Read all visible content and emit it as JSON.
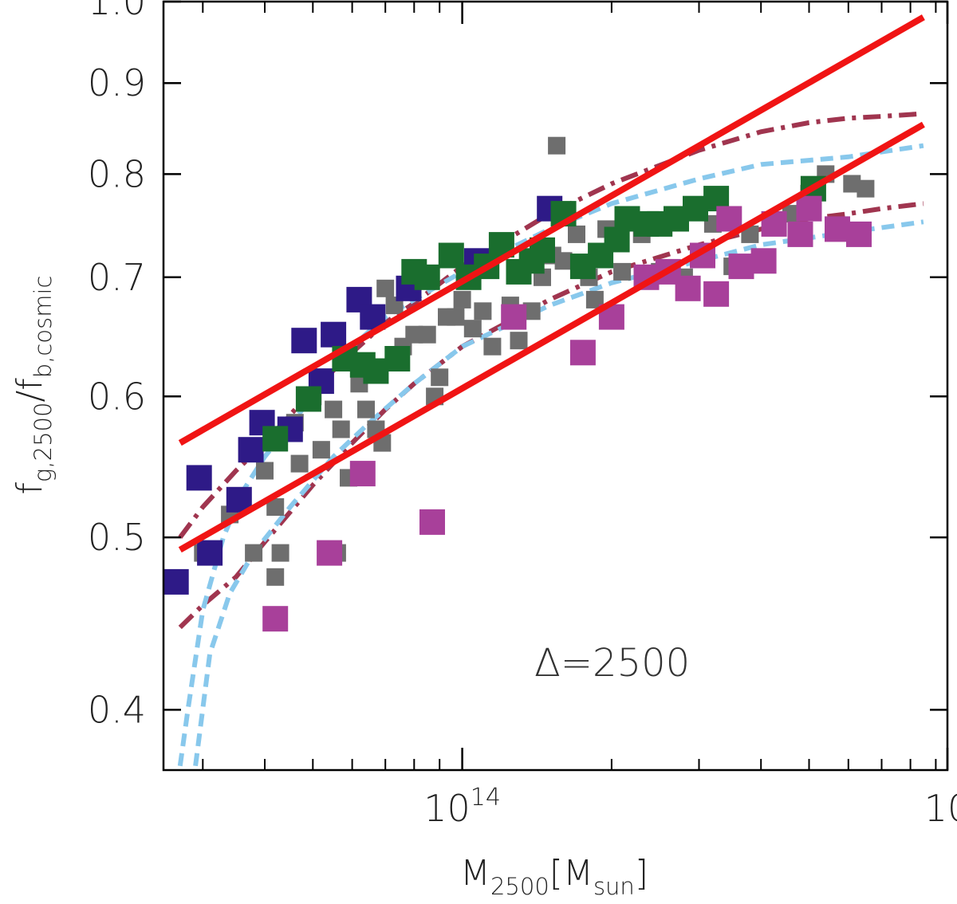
{
  "chart_data": {
    "type": "scatter",
    "xlabel": {
      "main": "M",
      "sub": "2500",
      "bracket_open": "[M",
      "bracket_sub": "sun",
      "bracket_close": "]"
    },
    "ylabel": {
      "main": "f",
      "sub1": "g,2500",
      "slash": "/f",
      "sub2": "b,cosmic"
    },
    "xscale": "log",
    "yscale": "log",
    "xlim": [
      25000000000000.0,
      950000000000000.0
    ],
    "ylim": [
      0.37,
      1.0
    ],
    "x_ticks": [
      {
        "value": 100000000000000.0,
        "base": "10",
        "exp": "14"
      },
      {
        "value": 950000000000000.0,
        "base": "10",
        "exp": ""
      }
    ],
    "x_minor_ticks": [
      30000000000000.0,
      40000000000000.0,
      50000000000000.0,
      60000000000000.0,
      70000000000000.0,
      80000000000000.0,
      90000000000000.0,
      200000000000000.0,
      300000000000000.0,
      400000000000000.0,
      500000000000000.0,
      600000000000000.0,
      700000000000000.0,
      800000000000000.0,
      900000000000000.0
    ],
    "y_ticks": [
      {
        "value": 0.4,
        "label": "0.4"
      },
      {
        "value": 0.5,
        "label": "0.5"
      },
      {
        "value": 0.6,
        "label": "0.6"
      },
      {
        "value": 0.7,
        "label": "0.7"
      },
      {
        "value": 0.8,
        "label": "0.8"
      },
      {
        "value": 0.9,
        "label": "0.9"
      },
      {
        "value": 1.0,
        "label": "1.0"
      }
    ],
    "annotation": "Δ=2500",
    "series": [
      {
        "name": "gray sample",
        "kind": "points",
        "color": "#6e6e6e",
        "size": "small",
        "points": [
          [
            30000000000000.0,
            0.49
          ],
          [
            34000000000000.0,
            0.515
          ],
          [
            38000000000000.0,
            0.49
          ],
          [
            42000000000000.0,
            0.52
          ],
          [
            43000000000000.0,
            0.49
          ],
          [
            42000000000000.0,
            0.475
          ],
          [
            40000000000000.0,
            0.545
          ],
          [
            46000000000000.0,
            0.58
          ],
          [
            47000000000000.0,
            0.55
          ],
          [
            50000000000000.0,
            0.6
          ],
          [
            52000000000000.0,
            0.56
          ],
          [
            55000000000000.0,
            0.59
          ],
          [
            57000000000000.0,
            0.575
          ],
          [
            59000000000000.0,
            0.54
          ],
          [
            56000000000000.0,
            0.49
          ],
          [
            62000000000000.0,
            0.61
          ],
          [
            64000000000000.0,
            0.59
          ],
          [
            67000000000000.0,
            0.575
          ],
          [
            69000000000000.0,
            0.565
          ],
          [
            70000000000000.0,
            0.69
          ],
          [
            73000000000000.0,
            0.675
          ],
          [
            76000000000000.0,
            0.64
          ],
          [
            80000000000000.0,
            0.65
          ],
          [
            85000000000000.0,
            0.65
          ],
          [
            88000000000000.0,
            0.6
          ],
          [
            90000000000000.0,
            0.615
          ],
          [
            93000000000000.0,
            0.665
          ],
          [
            97000000000000.0,
            0.665
          ],
          [
            100000000000000.0,
            0.68
          ],
          [
            105000000000000.0,
            0.655
          ],
          [
            110000000000000.0,
            0.67
          ],
          [
            115000000000000.0,
            0.64
          ],
          [
            125000000000000.0,
            0.675
          ],
          [
            130000000000000.0,
            0.645
          ],
          [
            138000000000000.0,
            0.67
          ],
          [
            145000000000000.0,
            0.7
          ],
          [
            152000000000000.0,
            0.72
          ],
          [
            155000000000000.0,
            0.83
          ],
          [
            160000000000000.0,
            0.715
          ],
          [
            170000000000000.0,
            0.74
          ],
          [
            180000000000000.0,
            0.7
          ],
          [
            185000000000000.0,
            0.68
          ],
          [
            195000000000000.0,
            0.745
          ],
          [
            210000000000000.0,
            0.705
          ],
          [
            230000000000000.0,
            0.74
          ],
          [
            250000000000000.0,
            0.705
          ],
          [
            280000000000000.0,
            0.7
          ],
          [
            300000000000000.0,
            0.72
          ],
          [
            320000000000000.0,
            0.75
          ],
          [
            350000000000000.0,
            0.71
          ],
          [
            380000000000000.0,
            0.74
          ],
          [
            420000000000000.0,
            0.75
          ],
          [
            460000000000000.0,
            0.76
          ],
          [
            500000000000000.0,
            0.78
          ],
          [
            540000000000000.0,
            0.8
          ],
          [
            610000000000000.0,
            0.79
          ],
          [
            650000000000000.0,
            0.785
          ]
        ]
      },
      {
        "name": "navy sample",
        "kind": "points",
        "color": "#2e1a87",
        "size": "large",
        "points": [
          [
            26500000000000.0,
            0.472
          ],
          [
            29500000000000.0,
            0.54
          ],
          [
            31000000000000.0,
            0.49
          ],
          [
            35500000000000.0,
            0.525
          ],
          [
            37500000000000.0,
            0.56
          ],
          [
            39500000000000.0,
            0.58
          ],
          [
            45000000000000.0,
            0.575
          ],
          [
            48000000000000.0,
            0.645
          ],
          [
            52000000000000.0,
            0.612
          ],
          [
            55000000000000.0,
            0.65
          ],
          [
            62000000000000.0,
            0.68
          ],
          [
            66000000000000.0,
            0.665
          ],
          [
            78000000000000.0,
            0.69
          ],
          [
            107000000000000.0,
            0.715
          ],
          [
            150000000000000.0,
            0.765
          ]
        ]
      },
      {
        "name": "green sample",
        "kind": "points",
        "color": "#1a6e2e",
        "size": "large",
        "points": [
          [
            42000000000000.0,
            0.568
          ],
          [
            49000000000000.0,
            0.598
          ],
          [
            58000000000000.0,
            0.63
          ],
          [
            63000000000000.0,
            0.625
          ],
          [
            67000000000000.0,
            0.62
          ],
          [
            74000000000000.0,
            0.63
          ],
          [
            80000000000000.0,
            0.705
          ],
          [
            85000000000000.0,
            0.7
          ],
          [
            95000000000000.0,
            0.72
          ],
          [
            103000000000000.0,
            0.7
          ],
          [
            112000000000000.0,
            0.71
          ],
          [
            120000000000000.0,
            0.73
          ],
          [
            130000000000000.0,
            0.705
          ],
          [
            138000000000000.0,
            0.715
          ],
          [
            145000000000000.0,
            0.725
          ],
          [
            160000000000000.0,
            0.76
          ],
          [
            175000000000000.0,
            0.71
          ],
          [
            190000000000000.0,
            0.72
          ],
          [
            205000000000000.0,
            0.735
          ],
          [
            215000000000000.0,
            0.755
          ],
          [
            235000000000000.0,
            0.75
          ],
          [
            250000000000000.0,
            0.75
          ],
          [
            270000000000000.0,
            0.755
          ],
          [
            295000000000000.0,
            0.765
          ],
          [
            325000000000000.0,
            0.775
          ],
          [
            510000000000000.0,
            0.785
          ]
        ]
      },
      {
        "name": "magenta sample",
        "kind": "points",
        "color": "#a8409a",
        "size": "large",
        "points": [
          [
            42000000000000.0,
            0.45
          ],
          [
            54000000000000.0,
            0.49
          ],
          [
            63000000000000.0,
            0.543
          ],
          [
            87000000000000.0,
            0.51
          ],
          [
            127000000000000.0,
            0.665
          ],
          [
            175000000000000.0,
            0.635
          ],
          [
            200000000000000.0,
            0.665
          ],
          [
            235000000000000.0,
            0.7
          ],
          [
            260000000000000.0,
            0.705
          ],
          [
            285000000000000.0,
            0.69
          ],
          [
            305000000000000.0,
            0.72
          ],
          [
            325000000000000.0,
            0.685
          ],
          [
            345000000000000.0,
            0.755
          ],
          [
            365000000000000.0,
            0.71
          ],
          [
            405000000000000.0,
            0.715
          ],
          [
            425000000000000.0,
            0.75
          ],
          [
            480000000000000.0,
            0.74
          ],
          [
            500000000000000.0,
            0.765
          ],
          [
            570000000000000.0,
            0.745
          ],
          [
            630000000000000.0,
            0.74
          ]
        ]
      },
      {
        "name": "upper red fit",
        "kind": "line",
        "style": "solid",
        "color": "#f01414",
        "points": [
          [
            27000000000000.0,
            0.565
          ],
          [
            850000000000000.0,
            0.98
          ]
        ]
      },
      {
        "name": "lower red fit",
        "kind": "line",
        "style": "solid",
        "color": "#f01414",
        "points": [
          [
            27000000000000.0,
            0.492
          ],
          [
            850000000000000.0,
            0.853
          ]
        ]
      },
      {
        "name": "upper dash-dot model",
        "kind": "line",
        "style": "dashdot",
        "color": "#a0354f",
        "points": [
          [
            27000000000000.0,
            0.5
          ],
          [
            30000000000000.0,
            0.52
          ],
          [
            35000000000000.0,
            0.545
          ],
          [
            40000000000000.0,
            0.565
          ],
          [
            50000000000000.0,
            0.605
          ],
          [
            60000000000000.0,
            0.635
          ],
          [
            70000000000000.0,
            0.66
          ],
          [
            80000000000000.0,
            0.677
          ],
          [
            100000000000000.0,
            0.71
          ],
          [
            150000000000000.0,
            0.76
          ],
          [
            200000000000000.0,
            0.79
          ],
          [
            300000000000000.0,
            0.825
          ],
          [
            400000000000000.0,
            0.845
          ],
          [
            500000000000000.0,
            0.855
          ],
          [
            600000000000000.0,
            0.86
          ],
          [
            700000000000000.0,
            0.862
          ],
          [
            850000000000000.0,
            0.865
          ]
        ]
      },
      {
        "name": "lower dash-dot model",
        "kind": "line",
        "style": "dashdot",
        "color": "#a0354f",
        "points": [
          [
            27000000000000.0,
            0.445
          ],
          [
            30000000000000.0,
            0.458
          ],
          [
            35000000000000.0,
            0.475
          ],
          [
            40000000000000.0,
            0.497
          ],
          [
            50000000000000.0,
            0.535
          ],
          [
            60000000000000.0,
            0.565
          ],
          [
            70000000000000.0,
            0.59
          ],
          [
            80000000000000.0,
            0.61
          ],
          [
            100000000000000.0,
            0.64
          ],
          [
            150000000000000.0,
            0.68
          ],
          [
            200000000000000.0,
            0.705
          ],
          [
            300000000000000.0,
            0.73
          ],
          [
            400000000000000.0,
            0.745
          ],
          [
            500000000000000.0,
            0.755
          ],
          [
            600000000000000.0,
            0.76
          ],
          [
            700000000000000.0,
            0.765
          ],
          [
            850000000000000.0,
            0.77
          ]
        ]
      },
      {
        "name": "upper dashed model",
        "kind": "line",
        "style": "dashed",
        "color": "#88c8ec",
        "points": [
          [
            27000000000000.0,
            0.372
          ],
          [
            28000000000000.0,
            0.4
          ],
          [
            30000000000000.0,
            0.455
          ],
          [
            33000000000000.0,
            0.5
          ],
          [
            36000000000000.0,
            0.53
          ],
          [
            40000000000000.0,
            0.555
          ],
          [
            50000000000000.0,
            0.6
          ],
          [
            60000000000000.0,
            0.64
          ],
          [
            70000000000000.0,
            0.665
          ],
          [
            80000000000000.0,
            0.68
          ],
          [
            100000000000000.0,
            0.705
          ],
          [
            150000000000000.0,
            0.745
          ],
          [
            200000000000000.0,
            0.77
          ],
          [
            300000000000000.0,
            0.795
          ],
          [
            400000000000000.0,
            0.81
          ],
          [
            600000000000000.0,
            0.818
          ],
          [
            850000000000000.0,
            0.83
          ]
        ]
      },
      {
        "name": "lower dashed model",
        "kind": "line",
        "style": "dashed",
        "color": "#88c8ec",
        "points": [
          [
            29000000000000.0,
            0.372
          ],
          [
            31000000000000.0,
            0.43
          ],
          [
            34000000000000.0,
            0.465
          ],
          [
            38000000000000.0,
            0.49
          ],
          [
            45000000000000.0,
            0.52
          ],
          [
            55000000000000.0,
            0.555
          ],
          [
            65000000000000.0,
            0.58
          ],
          [
            80000000000000.0,
            0.61
          ],
          [
            100000000000000.0,
            0.64
          ],
          [
            150000000000000.0,
            0.675
          ],
          [
            200000000000000.0,
            0.695
          ],
          [
            300000000000000.0,
            0.715
          ],
          [
            400000000000000.0,
            0.73
          ],
          [
            600000000000000.0,
            0.742
          ],
          [
            850000000000000.0,
            0.752
          ]
        ]
      }
    ]
  }
}
